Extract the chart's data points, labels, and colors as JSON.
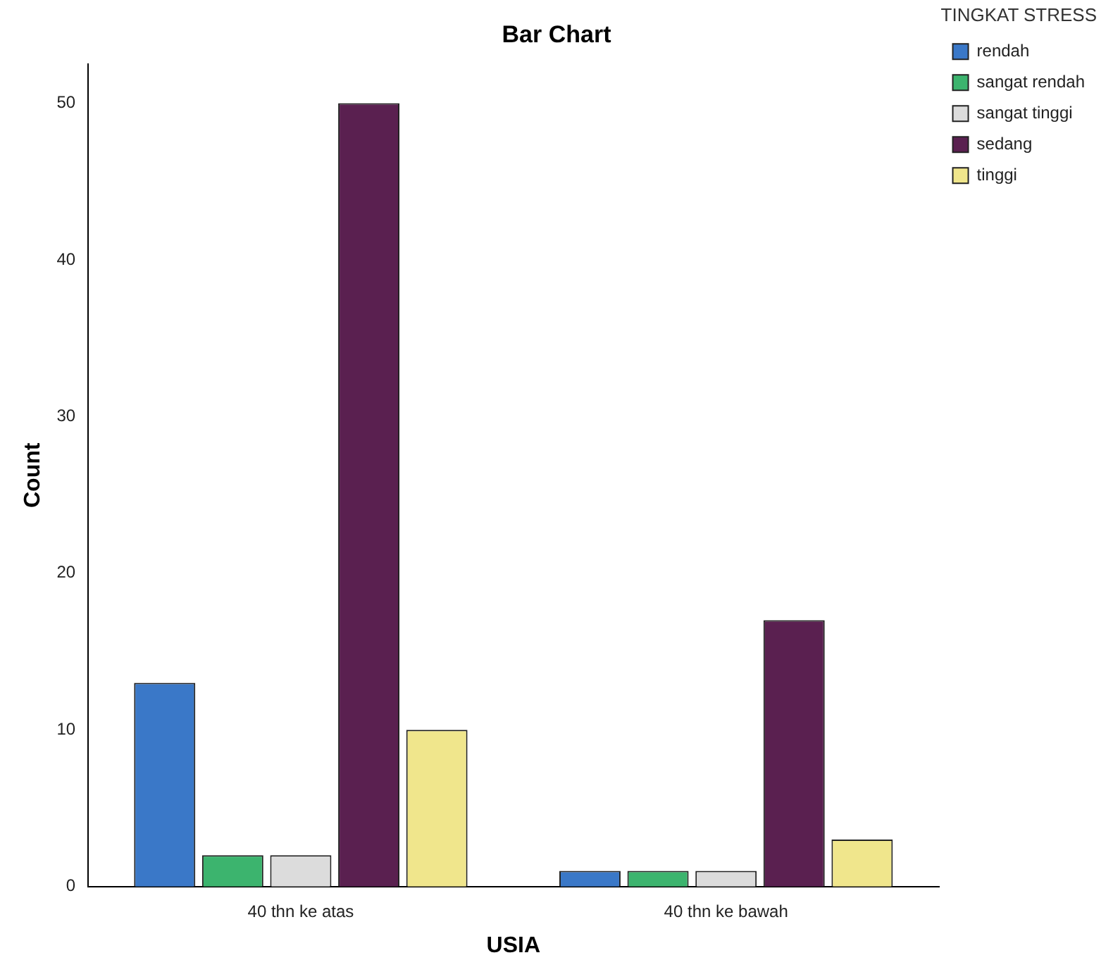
{
  "chart_data": {
    "type": "bar",
    "title": "Bar Chart",
    "xlabel": "USIA",
    "ylabel": "Count",
    "legend_title": "TINGKAT STRESS",
    "categories": [
      "40 thn ke atas",
      "40 thn ke bawah"
    ],
    "series": [
      {
        "name": "rendah",
        "color": "#3a78c8",
        "values": [
          13,
          1
        ]
      },
      {
        "name": "sangat rendah",
        "color": "#3cb46e",
        "values": [
          2,
          1
        ]
      },
      {
        "name": "sangat tinggi",
        "color": "#dcdcdc",
        "values": [
          2,
          1
        ]
      },
      {
        "name": "sedang",
        "color": "#5a2050",
        "values": [
          50,
          17
        ]
      },
      {
        "name": "tinggi",
        "color": "#f0e68c",
        "values": [
          10,
          3
        ]
      }
    ],
    "ylim": [
      0,
      52.5
    ],
    "yticks": [
      0,
      10,
      20,
      30,
      40,
      50
    ],
    "grid": false,
    "legend": "right"
  }
}
